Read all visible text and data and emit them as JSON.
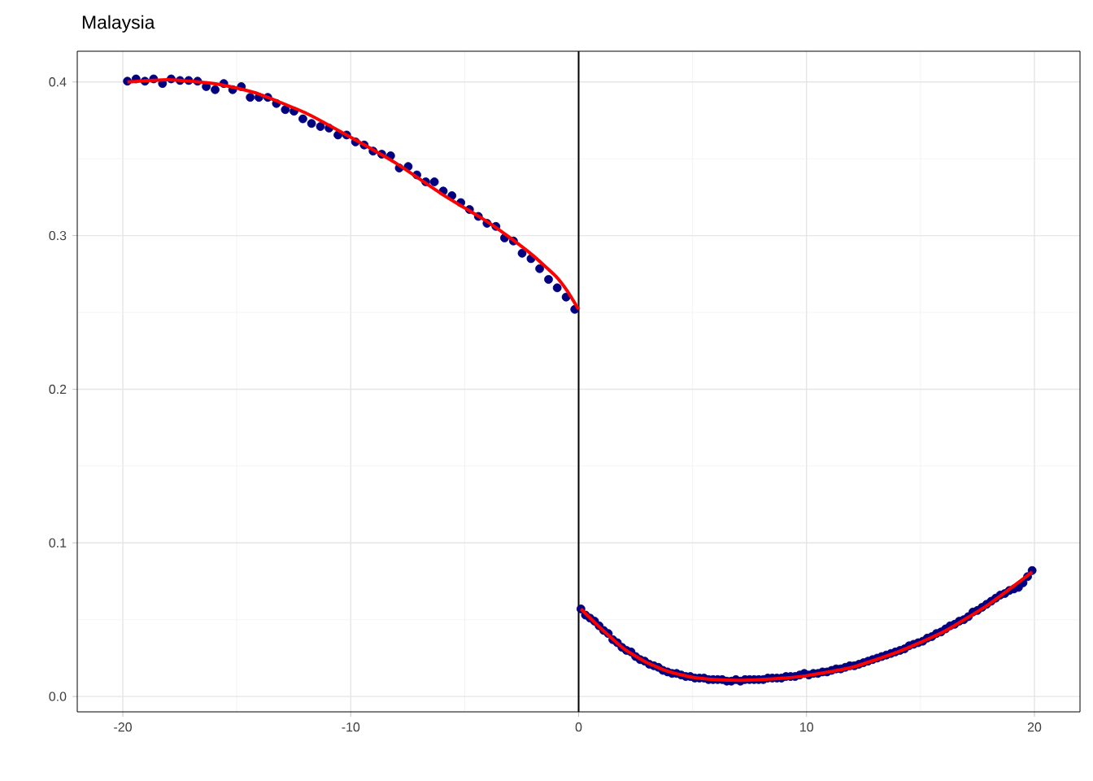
{
  "chart_data": {
    "type": "scatter",
    "title": "Malaysia",
    "xlim": [
      -22,
      22
    ],
    "ylim": [
      -0.01,
      0.42
    ],
    "xticks": [
      -20,
      -10,
      0,
      10,
      20
    ],
    "yticks": [
      {
        "value": 0,
        "label": "0.0"
      },
      {
        "value": 0.1,
        "label": "0.1"
      },
      {
        "value": 0.2,
        "label": "0.2"
      },
      {
        "value": 0.3,
        "label": "0.3"
      },
      {
        "value": 0.4,
        "label": "0.4"
      }
    ],
    "grid": true,
    "ref_lines": [
      {
        "axis": "x",
        "value": 0,
        "color": "#000000"
      }
    ],
    "series": [
      {
        "type": "scatter",
        "marker": "circle",
        "color": "#000080",
        "x": [
          -19.8,
          -19.42,
          -19.03,
          -18.65,
          -18.26,
          -17.88,
          -17.49,
          -17.11,
          -16.72,
          -16.34,
          -15.95,
          -15.57,
          -15.18,
          -14.8,
          -14.41,
          -14.03,
          -13.64,
          -13.26,
          -12.87,
          -12.49,
          -12.1,
          -11.72,
          -11.33,
          -10.95,
          -10.56,
          -10.18,
          -9.79,
          -9.41,
          -9.02,
          -8.64,
          -8.25,
          -7.87,
          -7.48,
          -7.1,
          -6.71,
          -6.33,
          -5.94,
          -5.56,
          -5.17,
          -4.79,
          -4.4,
          -4.02,
          -3.63,
          -3.25,
          -2.86,
          -2.48,
          -2.09,
          -1.71,
          -1.32,
          -0.94,
          -0.55,
          -0.17
        ],
        "values": [
          0.4005,
          0.402,
          0.4005,
          0.402,
          0.399,
          0.402,
          0.401,
          0.401,
          0.4005,
          0.397,
          0.395,
          0.399,
          0.395,
          0.397,
          0.39,
          0.39,
          0.39,
          0.386,
          0.382,
          0.381,
          0.376,
          0.373,
          0.371,
          0.37,
          0.3655,
          0.3655,
          0.361,
          0.359,
          0.355,
          0.353,
          0.352,
          0.344,
          0.345,
          0.3395,
          0.335,
          0.335,
          0.329,
          0.326,
          0.3215,
          0.317,
          0.3125,
          0.308,
          0.306,
          0.2985,
          0.2965,
          0.2885,
          0.285,
          0.2785,
          0.2715,
          0.266,
          0.26,
          0.252
        ]
      },
      {
        "marker": "circle",
        "color": "#000080",
        "x": [
          0.1,
          0.3,
          0.5,
          0.7,
          0.9,
          1.1,
          1.3,
          1.5,
          1.7,
          1.9,
          2.1,
          2.3,
          2.5,
          2.7,
          2.9,
          3.1,
          3.3,
          3.5,
          3.7,
          3.9,
          4.1,
          4.3,
          4.5,
          4.7,
          4.9,
          5.1,
          5.3,
          5.5,
          5.7,
          5.9,
          6.1,
          6.3,
          6.5,
          6.7,
          6.9,
          7.1,
          7.3,
          7.5,
          7.7,
          7.9,
          8.1,
          8.3,
          8.5,
          8.7,
          8.9,
          9.1,
          9.3,
          9.5,
          9.7,
          9.9,
          10.1,
          10.3,
          10.5,
          10.7,
          10.9,
          11.1,
          11.3,
          11.5,
          11.7,
          11.9,
          12.1,
          12.3,
          12.5,
          12.7,
          12.9,
          13.1,
          13.3,
          13.5,
          13.7,
          13.9,
          14.1,
          14.3,
          14.5,
          14.7,
          14.9,
          15.1,
          15.3,
          15.5,
          15.7,
          15.9,
          16.1,
          16.3,
          16.5,
          16.7,
          16.9,
          17.1,
          17.3,
          17.5,
          17.7,
          17.9,
          18.1,
          18.3,
          18.5,
          18.7,
          18.9,
          19.1,
          19.3,
          19.5,
          19.7,
          19.9
        ],
        "values": [
          0.057,
          0.053,
          0.051,
          0.049,
          0.046,
          0.043,
          0.041,
          0.037,
          0.035,
          0.032,
          0.03,
          0.029,
          0.026,
          0.024,
          0.023,
          0.021,
          0.02,
          0.019,
          0.017,
          0.016,
          0.015,
          0.015,
          0.014,
          0.013,
          0.013,
          0.012,
          0.012,
          0.012,
          0.011,
          0.011,
          0.011,
          0.011,
          0.01,
          0.01,
          0.011,
          0.01,
          0.011,
          0.011,
          0.011,
          0.011,
          0.011,
          0.012,
          0.012,
          0.012,
          0.012,
          0.013,
          0.013,
          0.013,
          0.014,
          0.015,
          0.014,
          0.015,
          0.015,
          0.016,
          0.016,
          0.017,
          0.018,
          0.018,
          0.019,
          0.02,
          0.02,
          0.021,
          0.022,
          0.023,
          0.024,
          0.025,
          0.026,
          0.027,
          0.028,
          0.029,
          0.03,
          0.031,
          0.033,
          0.034,
          0.035,
          0.036,
          0.038,
          0.039,
          0.041,
          0.042,
          0.044,
          0.046,
          0.047,
          0.049,
          0.05,
          0.052,
          0.055,
          0.056,
          0.058,
          0.06,
          0.062,
          0.064,
          0.066,
          0.067,
          0.069,
          0.07,
          0.071,
          0.074,
          0.078,
          0.082
        ]
      },
      {
        "type": "line",
        "marker": "none",
        "color": "#ff0000",
        "x": [
          -19.8,
          -18,
          -16,
          -15,
          -14,
          -12,
          -10,
          -8,
          -6,
          -5,
          -4,
          -3,
          -2,
          -1,
          -0.5,
          0
        ],
        "values": [
          0.4,
          0.4015,
          0.399,
          0.396,
          0.392,
          0.38,
          0.364,
          0.347,
          0.327,
          0.318,
          0.309,
          0.2985,
          0.287,
          0.2735,
          0.264,
          0.252
        ]
      },
      {
        "type": "line",
        "marker": "none",
        "color": "#ff0000",
        "x": [
          0.1,
          1,
          2,
          3,
          4,
          5,
          6,
          7,
          8,
          9,
          10,
          12,
          14,
          16,
          18,
          19.9
        ],
        "values": [
          0.057,
          0.044,
          0.031,
          0.022,
          0.016,
          0.0125,
          0.011,
          0.0105,
          0.011,
          0.012,
          0.0135,
          0.019,
          0.029,
          0.042,
          0.06,
          0.081
        ]
      }
    ]
  }
}
